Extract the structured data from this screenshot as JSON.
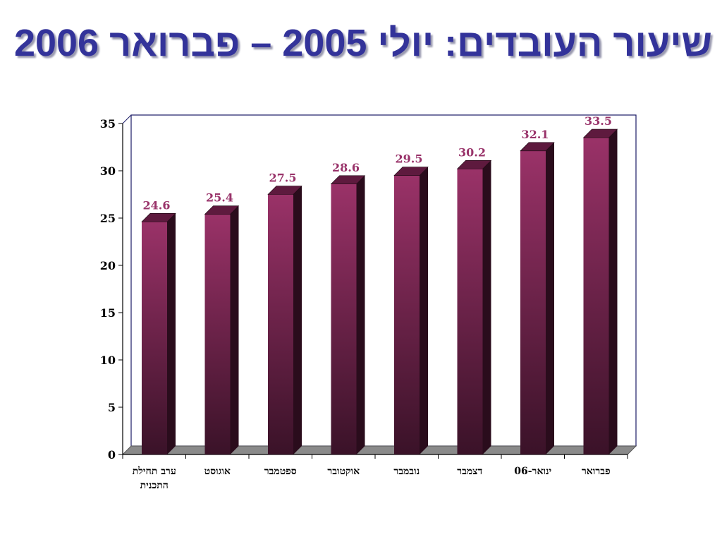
{
  "title": "שיעור העובדים: יולי 2005 – פברואר 2006",
  "colors": {
    "title": "#33339a",
    "bar_top": "#9a3268",
    "bar_bottom": "#3a1228",
    "bar_side": "#2a0c1c",
    "bar_cap": "#5e1a3e",
    "data_label": "#99336a",
    "plot_border": "#1a1a66",
    "floor": "#8a8a8a"
  },
  "chart_data": {
    "type": "bar",
    "categories": [
      "ערב תחילת התכנית",
      "אוגוסט",
      "ספטמבר",
      "אוקטובר",
      "נובמבר",
      "דצמבר",
      "ינואר-06",
      "פברואר"
    ],
    "category_lines": [
      [
        "ערב תחילת",
        "התכנית"
      ],
      [
        "אוגוסט"
      ],
      [
        "ספטמבר"
      ],
      [
        "אוקטובר"
      ],
      [
        "נובמבר"
      ],
      [
        "דצמבר"
      ],
      [
        "ינואר-06"
      ],
      [
        "פברואר"
      ]
    ],
    "values": [
      24.6,
      25.4,
      27.5,
      28.6,
      29.5,
      30.2,
      32.1,
      33.5
    ],
    "data_labels": [
      "24.6",
      "25.4",
      "27.5",
      "28.6",
      "29.5",
      "30.2",
      "32.1",
      "33.5"
    ],
    "ylim": [
      0,
      35
    ],
    "yticks": [
      0,
      5,
      10,
      15,
      20,
      25,
      30,
      35
    ],
    "title": "",
    "xlabel": "",
    "ylabel": "",
    "grid": false,
    "legend": "none"
  }
}
